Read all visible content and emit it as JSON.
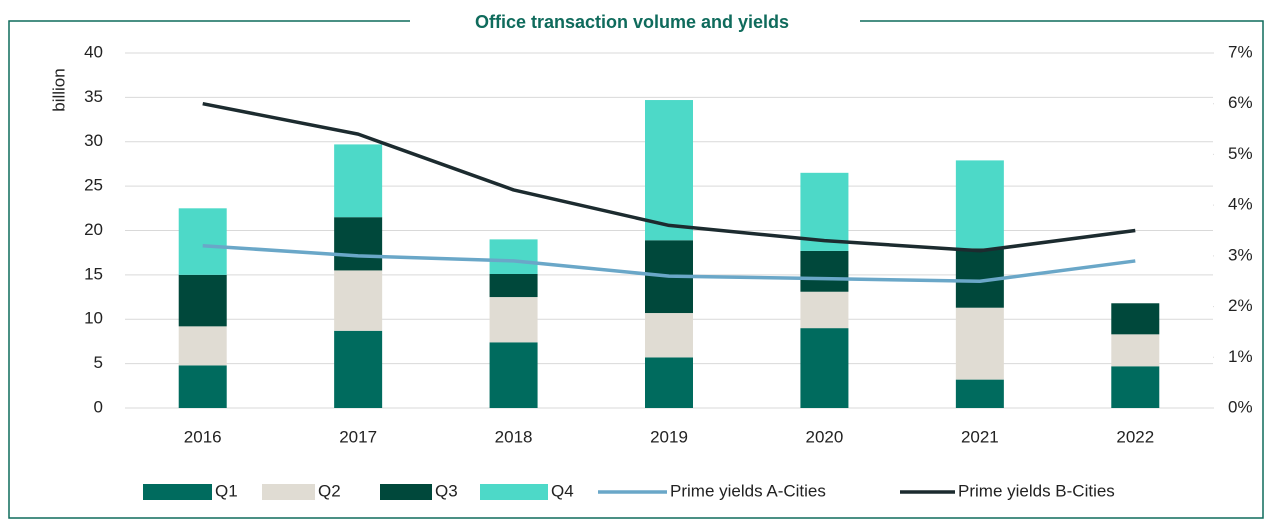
{
  "chart_data": {
    "type": "bar",
    "title": "Office transaction volume and yields",
    "y_label": "billion",
    "categories": [
      "2016",
      "2017",
      "2018",
      "2019",
      "2020",
      "2021",
      "2022"
    ],
    "series": [
      {
        "name": "Q1",
        "color": "#006b5e",
        "values": [
          4.8,
          8.7,
          7.4,
          5.7,
          9.0,
          3.2,
          4.7
        ]
      },
      {
        "name": "Q2",
        "color": "#e0dcd3",
        "values": [
          4.4,
          6.8,
          5.1,
          5.0,
          4.1,
          8.1,
          3.6
        ]
      },
      {
        "name": "Q3",
        "color": "#00483b",
        "values": [
          5.8,
          6.0,
          2.6,
          8.2,
          4.6,
          6.7,
          3.5
        ]
      },
      {
        "name": "Q4",
        "color": "#4dd9c8",
        "values": [
          7.5,
          8.2,
          3.9,
          15.8,
          8.8,
          9.9,
          null
        ]
      },
      {
        "name": "Prime yields A-Cities",
        "color": "#6aa7c8",
        "type": "line",
        "axis": "y2",
        "values": [
          3.2,
          3.0,
          2.9,
          2.6,
          2.55,
          2.5,
          2.9
        ]
      },
      {
        "name": "Prime yields B-Cities",
        "color": "#1c2b2f",
        "type": "line",
        "axis": "y2",
        "values": [
          6.0,
          5.4,
          4.3,
          3.6,
          3.3,
          3.1,
          3.5
        ]
      }
    ],
    "stacked": true,
    "ylim": [
      0,
      40
    ],
    "yticks": [
      0,
      5,
      10,
      15,
      20,
      25,
      30,
      35,
      40
    ],
    "y2lim": [
      0,
      7
    ],
    "y2ticks": [
      {
        "value": 0,
        "label": "0%"
      },
      {
        "value": 1,
        "label": "1%"
      },
      {
        "value": 2,
        "label": "2%"
      },
      {
        "value": 3,
        "label": "3%"
      },
      {
        "value": 4,
        "label": "4%"
      },
      {
        "value": 5,
        "label": "5%"
      },
      {
        "value": 6,
        "label": "6%"
      },
      {
        "value": 7,
        "label": "7%"
      }
    ],
    "grid": true,
    "legend": "bottom"
  }
}
